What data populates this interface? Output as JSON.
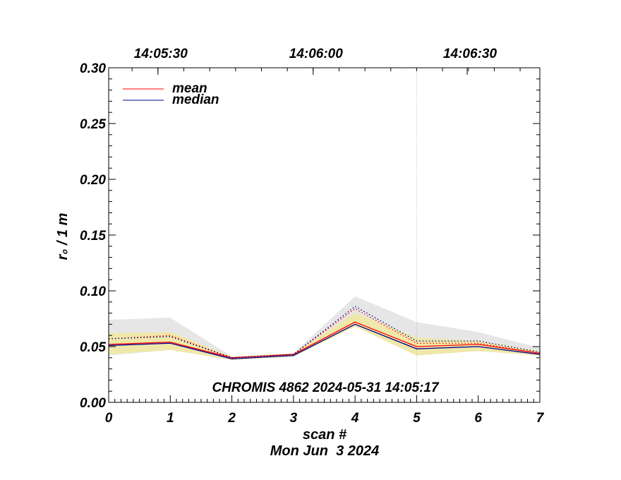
{
  "chart_data": {
    "type": "line",
    "x": [
      0,
      1,
      2,
      3,
      4,
      5,
      6,
      7
    ],
    "xlim": [
      0,
      7
    ],
    "ylim": [
      0,
      0.3
    ],
    "xlabel": "scan #",
    "ylabel": "r₀ / 1 m",
    "subtitle": "Mon Jun  3 2024",
    "annotation": "CHROMIS 4862 2024-05-31 14:05:17",
    "x_ticks": [
      "0",
      "1",
      "2",
      "3",
      "4",
      "5",
      "6",
      "7"
    ],
    "y_ticks": [
      "0.00",
      "0.05",
      "0.10",
      "0.15",
      "0.20",
      "0.25",
      "0.30"
    ],
    "y_tick_values": [
      0,
      0.05,
      0.1,
      0.15,
      0.2,
      0.25,
      0.3
    ],
    "top_axis": {
      "labels": [
        "14:05:30",
        "14:06:00",
        "14:06:30"
      ],
      "scan_positions": [
        0.8,
        3.32,
        5.82
      ]
    },
    "vertical_marker_scan": 5,
    "legend": {
      "placement": "top-left",
      "entries": [
        "mean",
        "median"
      ]
    },
    "series": [
      {
        "name": "mean",
        "color": "#ff0000",
        "style": "solid",
        "values": [
          0.052,
          0.054,
          0.04,
          0.043,
          0.072,
          0.05,
          0.052,
          0.044
        ]
      },
      {
        "name": "median",
        "color": "#00008b",
        "style": "solid",
        "values": [
          0.051,
          0.053,
          0.039,
          0.042,
          0.07,
          0.048,
          0.05,
          0.043
        ]
      },
      {
        "color": "#ff0000",
        "style": "dotted",
        "values": [
          0.057,
          0.06,
          0.04,
          0.043,
          0.084,
          0.053,
          0.053,
          0.044
        ]
      },
      {
        "color": "#00008b",
        "style": "dotted",
        "values": [
          0.057,
          0.059,
          0.04,
          0.043,
          0.086,
          0.055,
          0.055,
          0.045
        ]
      }
    ],
    "bands": [
      {
        "color": "#e6e6e6",
        "lower": [
          0.042,
          0.047,
          0.038,
          0.041,
          0.069,
          0.044,
          0.046,
          0.042
        ],
        "upper": [
          0.074,
          0.076,
          0.041,
          0.044,
          0.095,
          0.072,
          0.063,
          0.049
        ]
      },
      {
        "color": "#efe8aa",
        "lower": [
          0.043,
          0.047,
          0.038,
          0.041,
          0.068,
          0.042,
          0.046,
          0.042
        ],
        "upper": [
          0.062,
          0.063,
          0.041,
          0.044,
          0.08,
          0.058,
          0.055,
          0.046
        ]
      }
    ]
  }
}
